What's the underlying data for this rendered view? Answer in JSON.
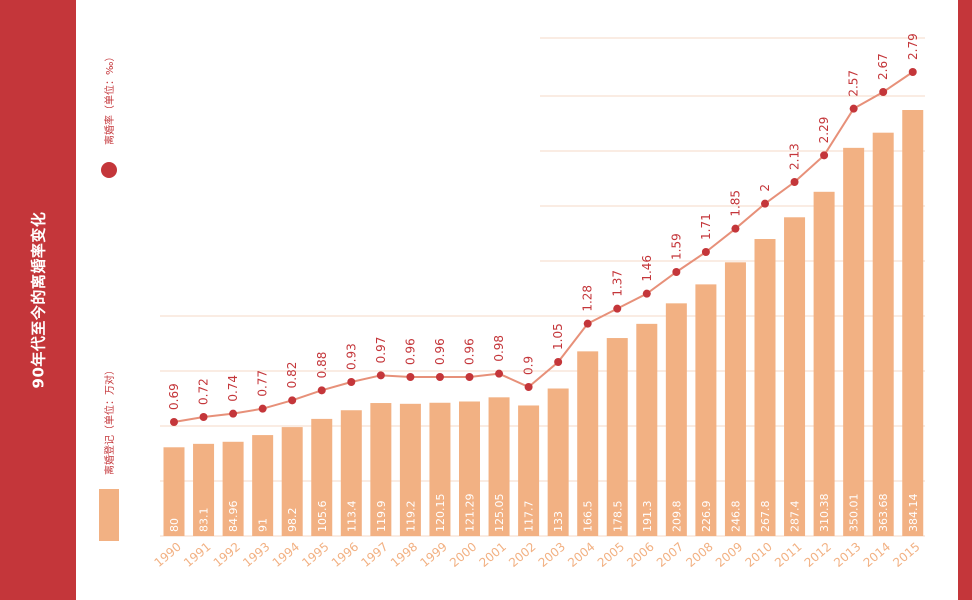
{
  "title": "90年代至今的离婚率变化",
  "colors": {
    "band": "#c4363a",
    "bar": "#f2b183",
    "line": "#e79079",
    "dot": "#c4363a",
    "label": "#c4363a",
    "barlabel": "#ffffff",
    "xtick": "#f2b183",
    "grid": "#f6dac7"
  },
  "legend": {
    "rate_label": "离婚率（单位：‰）",
    "reg_label": "离婚登记（单位：万对）"
  },
  "chart_data": {
    "type": "bar+line",
    "title": "90年代至今的离婚率变化",
    "categories": [
      "1990",
      "1991",
      "1992",
      "1993",
      "1994",
      "1995",
      "1996",
      "1997",
      "1998",
      "1999",
      "2000",
      "2001",
      "2002",
      "2003",
      "2004",
      "2005",
      "2006",
      "2007",
      "2008",
      "2009",
      "2010",
      "2011",
      "2012",
      "2013",
      "2014",
      "2015"
    ],
    "series": [
      {
        "name": "离婚登记（单位：万对）",
        "type": "bar",
        "values": [
          80,
          83.1,
          84.96,
          91,
          98.2,
          105.6,
          113.4,
          119.9,
          119.2,
          120.15,
          121.29,
          125.05,
          117.7,
          133,
          166.5,
          178.5,
          191.3,
          209.8,
          226.9,
          246.8,
          267.8,
          287.4,
          310.38,
          350.01,
          363.68,
          384.14
        ]
      },
      {
        "name": "离婚率（单位：‰）",
        "type": "line",
        "values": [
          0.69,
          0.72,
          0.74,
          0.77,
          0.82,
          0.88,
          0.93,
          0.97,
          0.96,
          0.96,
          0.96,
          0.98,
          0.9,
          1.05,
          1.28,
          1.37,
          1.46,
          1.59,
          1.71,
          1.85,
          2,
          2.13,
          2.29,
          2.57,
          2.67,
          2.79
        ]
      }
    ],
    "bar_labels": [
      "80",
      "83.1",
      "84.96",
      "91",
      "98.2",
      "105.6",
      "113.4",
      "119.9",
      "119.2",
      "120.15",
      "121.29",
      "125.05",
      "117.7",
      "133",
      "166.5",
      "178.5",
      "191.3",
      "209.8",
      "226.9",
      "246.8",
      "267.8",
      "287.4",
      "310.38",
      "350.01",
      "363.68",
      "384.14"
    ],
    "line_labels": [
      "0.69",
      "0.72",
      "0.74",
      "0.77",
      "0.82",
      "0.88",
      "0.93",
      "0.97",
      "0.96",
      "0.96",
      "0.96",
      "0.98",
      "0.9",
      "1.05",
      "1.28",
      "1.37",
      "1.46",
      "1.59",
      "1.71",
      "1.85",
      "2",
      "2.13",
      "2.29",
      "2.57",
      "2.67",
      "2.79"
    ],
    "bar_ylim": [
      0,
      400
    ],
    "line_ylim": [
      0,
      3.1
    ],
    "grid": true,
    "legend_position": "left"
  }
}
